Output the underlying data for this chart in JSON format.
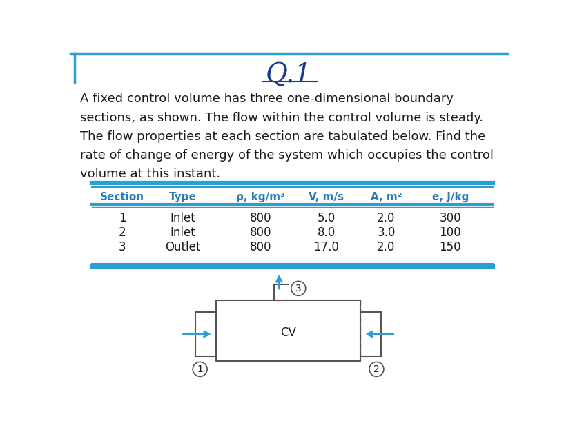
{
  "title": "Q.1",
  "title_color": "#1a3a8c",
  "title_fontsize": 28,
  "body_text": "A fixed control volume has three one-dimensional boundary\nsections, as shown. The flow within the control volume is steady.\nThe flow properties at each section are tabulated below. Find the\nrate of change of energy of the system which occupies the control\nvolume at this instant.",
  "body_fontsize": 13,
  "body_color": "#1a1a1a",
  "table_header": [
    "Section",
    "Type",
    "ρ, kg/m³",
    "V, m/s",
    "A, m²",
    "e, J/kg"
  ],
  "table_rows": [
    [
      "1",
      "Inlet",
      "800",
      "5.0",
      "2.0",
      "300"
    ],
    [
      "2",
      "Inlet",
      "800",
      "8.0",
      "3.0",
      "100"
    ],
    [
      "3",
      "Outlet",
      "800",
      "17.0",
      "2.0",
      "150"
    ]
  ],
  "table_header_color": "#2b7bba",
  "table_header_fontsize": 11,
  "table_row_fontsize": 12,
  "table_line_color": "#2b9ed4",
  "cv_label": "CV",
  "cv_label_fontsize": 12,
  "arrow_color": "#2b9ed4",
  "diagram_line_color": "#555555",
  "border_color": "#2b9ed4",
  "background_color": "#ffffff"
}
